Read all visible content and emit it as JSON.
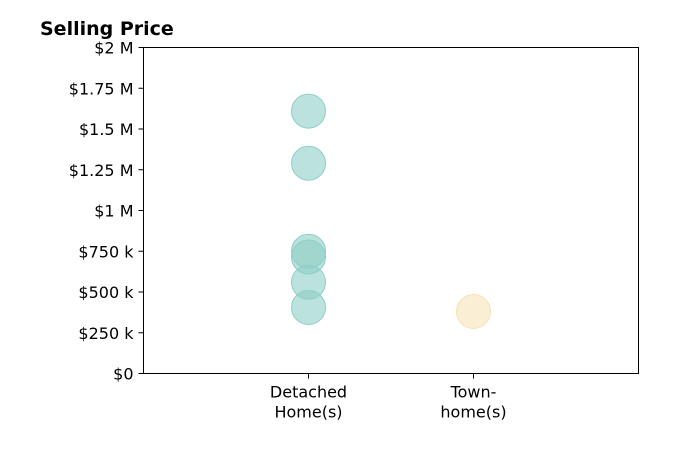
{
  "chart_data": {
    "type": "scatter",
    "title": "Selling Price",
    "xlabel": "",
    "ylabel": "",
    "categories": [
      [
        "Detached",
        "Home(s)"
      ],
      [
        "Town-",
        "home(s)"
      ]
    ],
    "ylim": [
      0,
      2000000
    ],
    "yticks": [
      0,
      250000,
      500000,
      750000,
      1000000,
      1250000,
      1500000,
      1750000,
      2000000
    ],
    "ytick_labels": [
      "$0",
      "$250 k",
      "$500 k",
      "$750 k",
      "$1 M",
      "$1.25 M",
      "$1.5 M",
      "$1.75 M",
      "$2 M"
    ],
    "grid": false,
    "legend": "none",
    "series": [
      {
        "category": 0,
        "color": "#8ecfc5",
        "values": [
          1610000,
          1290000,
          750000,
          715000,
          560000,
          405000
        ]
      },
      {
        "category": 1,
        "color": "#f6e2b8",
        "values": [
          380000
        ]
      }
    ]
  }
}
